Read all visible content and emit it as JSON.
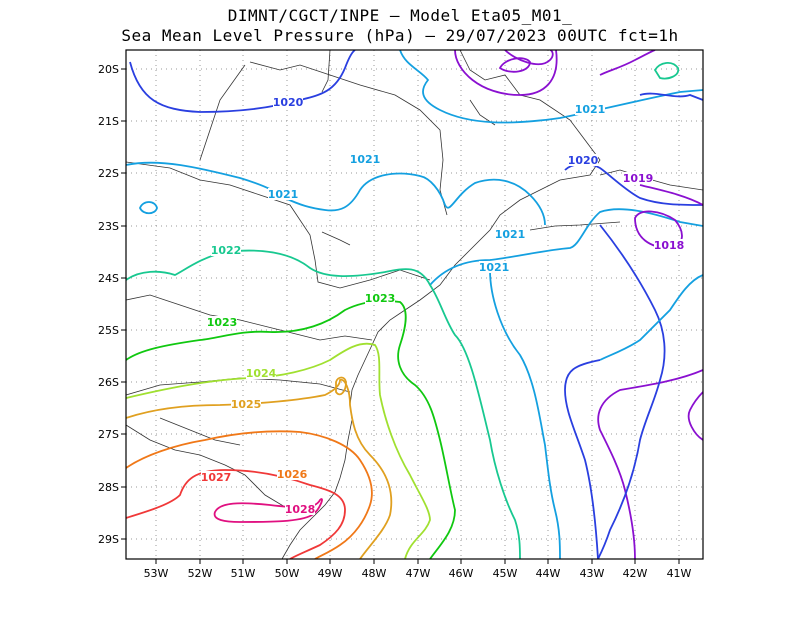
{
  "title_line1": "DIMNT/CGCT/INPE –  Model Eta05_M01_",
  "title_line2": "Sea Mean Level Pressure (hPa) – 29/07/2023 00UTC fct=1h",
  "x_ticks": [
    "53W",
    "52W",
    "51W",
    "50W",
    "49W",
    "48W",
    "47W",
    "46W",
    "45W",
    "44W",
    "43W",
    "42W",
    "41W"
  ],
  "y_ticks": [
    "20S",
    "21S",
    "22S",
    "23S",
    "24S",
    "25S",
    "26S",
    "27S",
    "28S",
    "29S"
  ],
  "contour_labels": [
    {
      "text": "1020",
      "color": "#2a3fe0"
    },
    {
      "text": "1021",
      "color": "#14a0e0"
    },
    {
      "text": "1021",
      "color": "#14a0e0"
    },
    {
      "text": "1020",
      "color": "#2a3fe0"
    },
    {
      "text": "1019",
      "color": "#8a10d0"
    },
    {
      "text": "1018",
      "color": "#8a10d0"
    },
    {
      "text": "1021",
      "color": "#14a0e0"
    },
    {
      "text": "1021",
      "color": "#14a0e0"
    },
    {
      "text": "1021",
      "color": "#14a0e0"
    },
    {
      "text": "1022",
      "color": "#18c890"
    },
    {
      "text": "1023",
      "color": "#10c810"
    },
    {
      "text": "1023",
      "color": "#10c810"
    },
    {
      "text": "1024",
      "color": "#a0e030"
    },
    {
      "text": "1025",
      "color": "#e0a020"
    },
    {
      "text": "1026",
      "color": "#f07818"
    },
    {
      "text": "1027",
      "color": "#f03838"
    },
    {
      "text": "1028",
      "color": "#e01080"
    }
  ]
}
